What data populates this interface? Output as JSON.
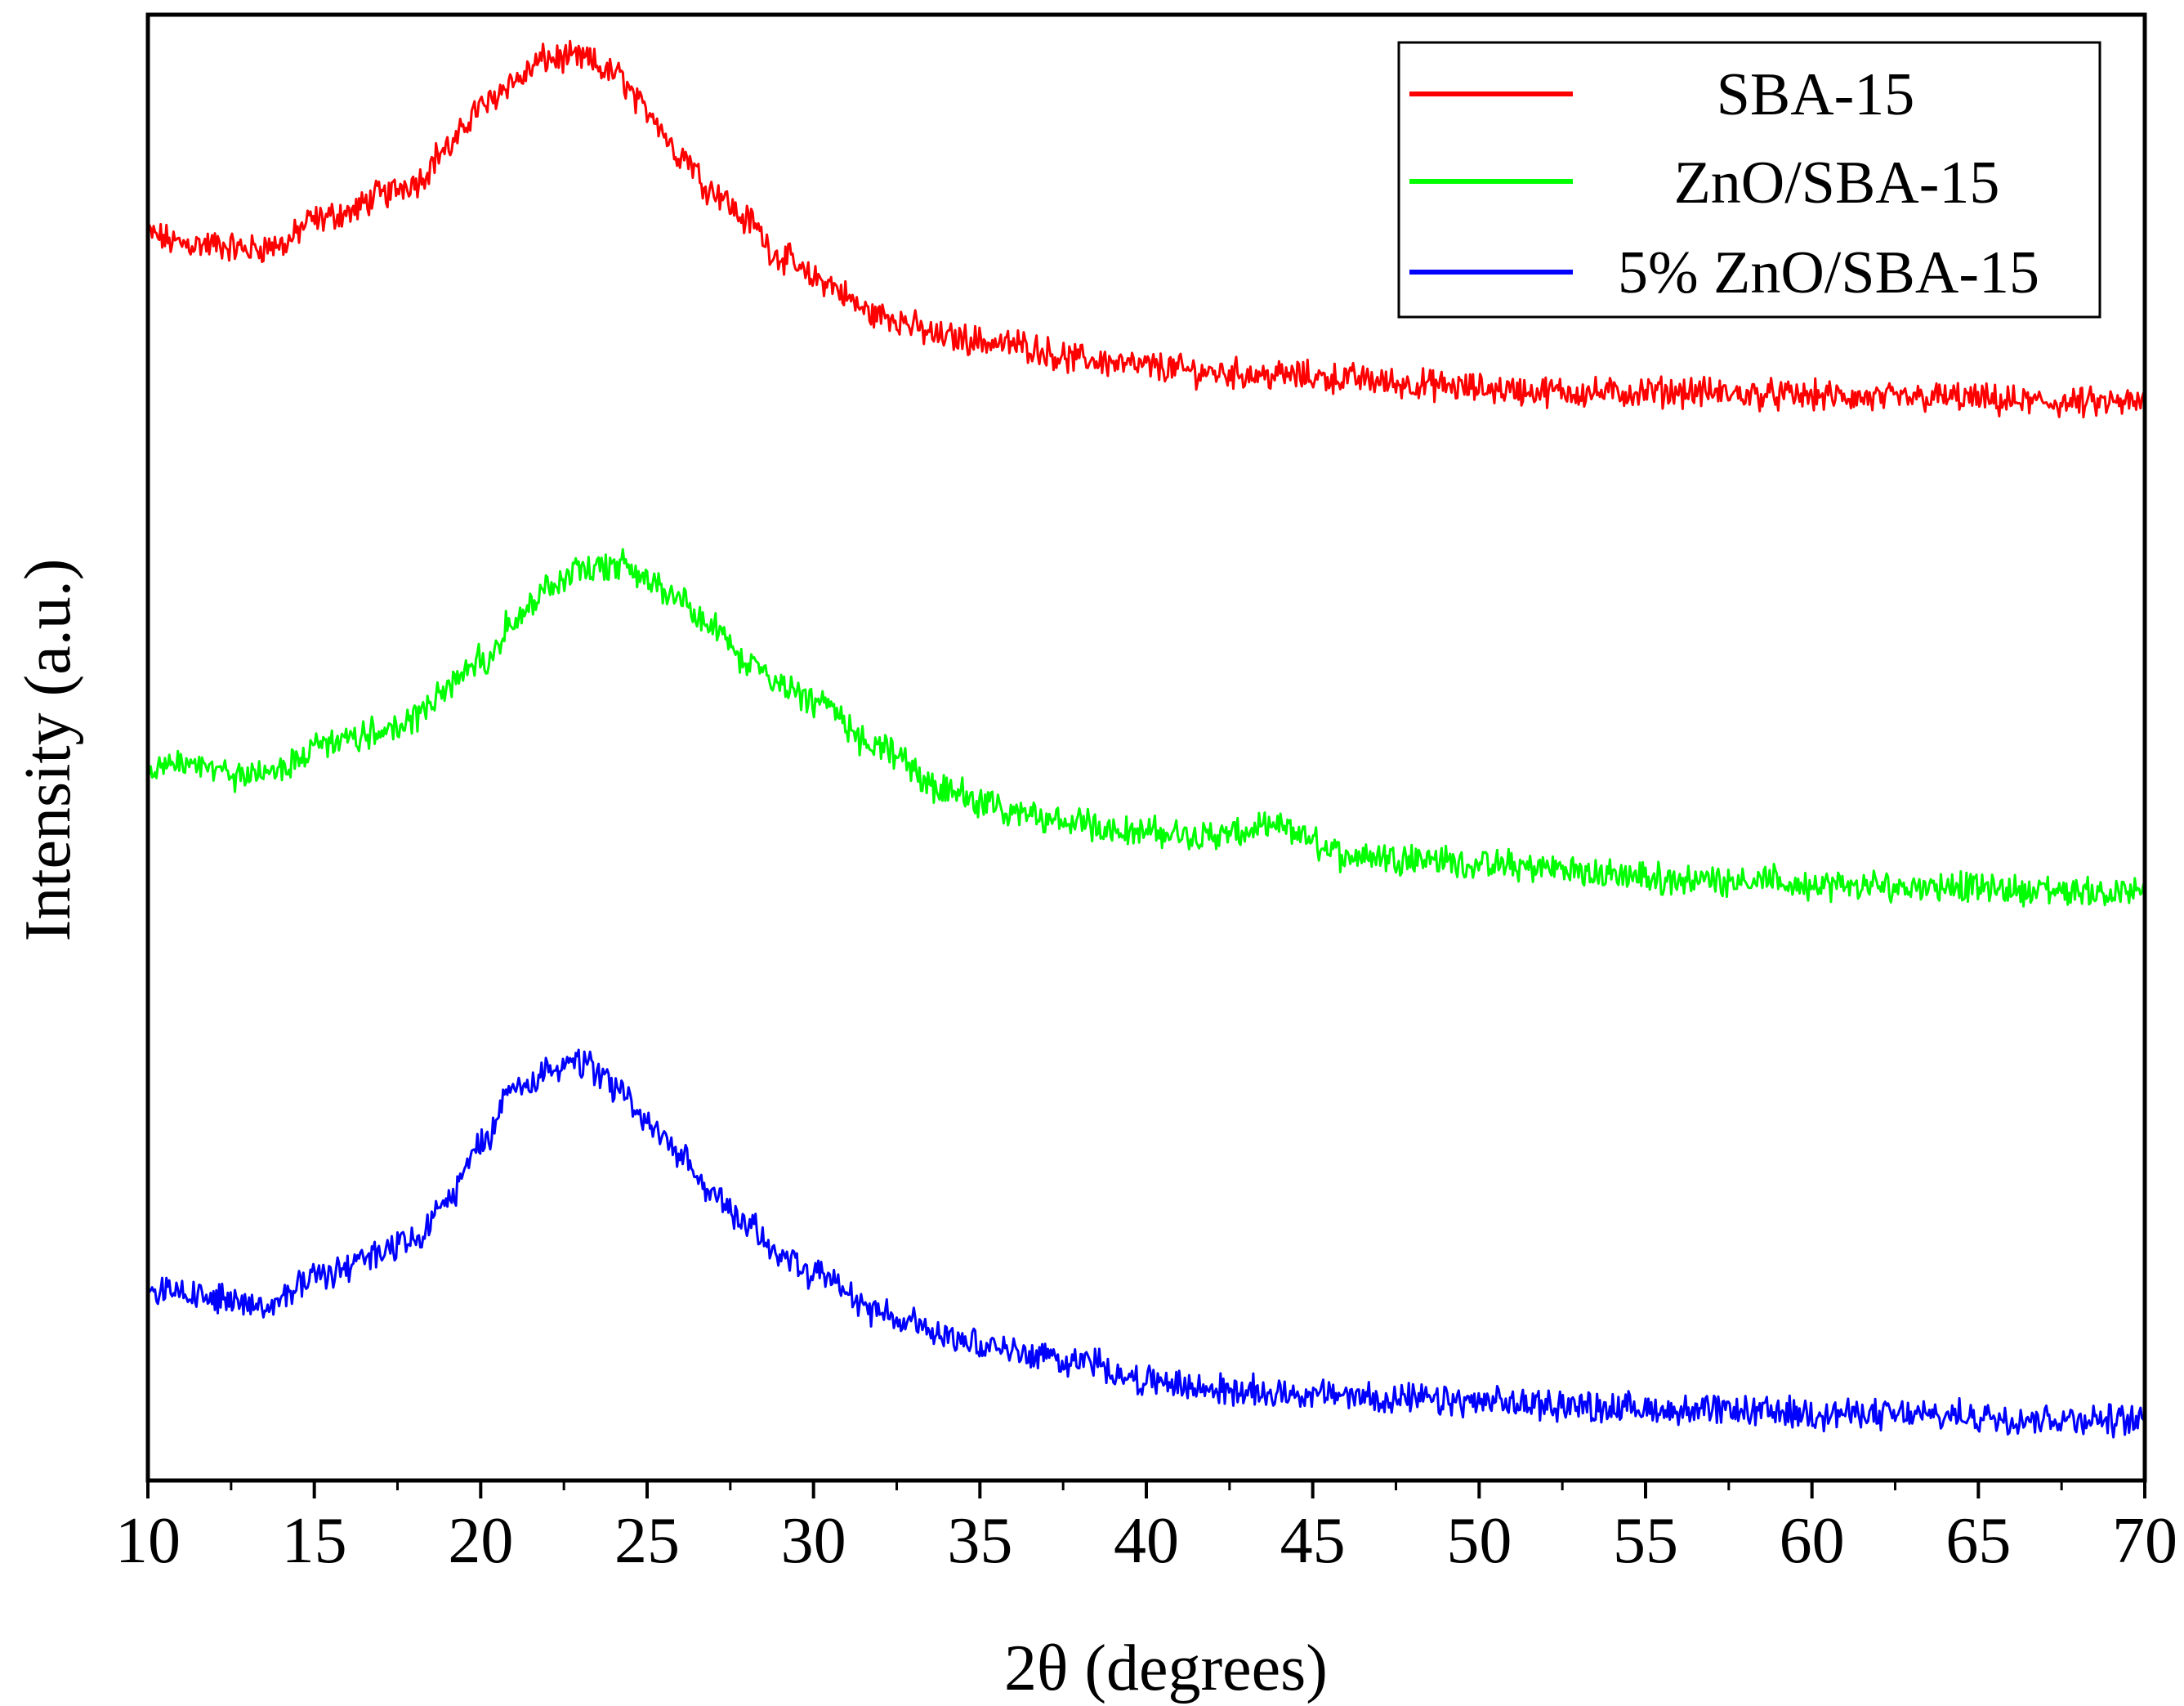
{
  "chart_data": {
    "type": "line",
    "title": "",
    "xlabel": "2θ (degrees)",
    "ylabel": "Intensity (a.u.)",
    "xlim": [
      10,
      70
    ],
    "ylim": [
      0,
      100
    ],
    "xticks": [
      10,
      15,
      20,
      25,
      30,
      35,
      40,
      45,
      50,
      55,
      60,
      65,
      70
    ],
    "xtick_labels": [
      "10",
      "15",
      "20",
      "25",
      "30",
      "35",
      "40",
      "45",
      "50",
      "55",
      "60",
      "65",
      "70"
    ],
    "yticks_shown": false,
    "grid": false,
    "legend_position": "top-right",
    "series": [
      {
        "name": "SBA-15",
        "color": "#ff0000",
        "x": [
          10,
          11,
          12,
          13,
          14,
          15,
          16,
          17,
          18,
          19,
          20,
          21,
          22,
          23,
          24,
          25,
          26,
          27,
          28,
          29,
          30,
          32,
          34,
          36,
          38,
          40,
          42,
          44,
          46,
          48,
          50,
          52,
          54,
          56,
          58,
          60,
          62,
          64,
          66,
          68,
          70
        ],
        "y": [
          85.0,
          84.4,
          84.3,
          84.0,
          84.3,
          86.0,
          86.5,
          87.7,
          88.6,
          90.9,
          93.7,
          95.5,
          97.0,
          97.0,
          96.0,
          93.5,
          90.5,
          88.0,
          86.0,
          83.5,
          82.0,
          79.5,
          78.0,
          77.5,
          76.5,
          76.0,
          75.6,
          75.4,
          75.2,
          74.8,
          74.5,
          74.3,
          74.2,
          74.3,
          74.1,
          74.0,
          73.8,
          73.9,
          73.6,
          73.5,
          73.5
        ]
      },
      {
        "name": "ZnO/SBA-15",
        "color": "#00ff00",
        "x": [
          10,
          11,
          12,
          13,
          14,
          15,
          16,
          17,
          18,
          19,
          20,
          21,
          22,
          23,
          24,
          25,
          26,
          27,
          28,
          29,
          30,
          32,
          34,
          36,
          38,
          40,
          42,
          44,
          46,
          48,
          50,
          52,
          54,
          56,
          58,
          60,
          62,
          64,
          66,
          68,
          70
        ],
        "y": [
          48.5,
          48.7,
          48.4,
          48.0,
          48.5,
          50.0,
          50.5,
          51.0,
          52.0,
          54.0,
          56.0,
          58.5,
          61.0,
          62.0,
          62.5,
          61.5,
          60.0,
          58.0,
          56.0,
          54.5,
          53.0,
          50.0,
          47.0,
          45.5,
          44.8,
          44.2,
          44.0,
          44.5,
          42.7,
          42.5,
          42.0,
          41.8,
          41.3,
          41.0,
          41.0,
          40.6,
          40.5,
          40.6,
          40.3,
          40.2,
          40.0
        ]
      },
      {
        "name": "5% ZnO/SBA-15",
        "color": "#0000ff",
        "x": [
          10,
          11,
          12,
          13,
          14,
          15,
          16,
          17,
          18,
          19,
          20,
          21,
          22,
          23,
          24,
          25,
          26,
          27,
          28,
          29,
          30,
          32,
          34,
          36,
          38,
          40,
          42,
          44,
          46,
          48,
          50,
          52,
          54,
          56,
          58,
          60,
          62,
          64,
          66,
          68,
          70
        ],
        "y": [
          13.0,
          12.8,
          12.5,
          12.0,
          12.3,
          14.0,
          14.5,
          15.5,
          16.5,
          19.0,
          23.0,
          26.5,
          28.0,
          28.5,
          27.0,
          24.5,
          22.0,
          19.5,
          17.5,
          15.5,
          14.0,
          11.5,
          10.0,
          8.8,
          8.2,
          6.8,
          6.2,
          6.0,
          5.8,
          5.5,
          5.3,
          5.2,
          5.0,
          4.8,
          4.7,
          4.6,
          4.5,
          4.4,
          4.3,
          4.2,
          4.0
        ]
      }
    ]
  }
}
